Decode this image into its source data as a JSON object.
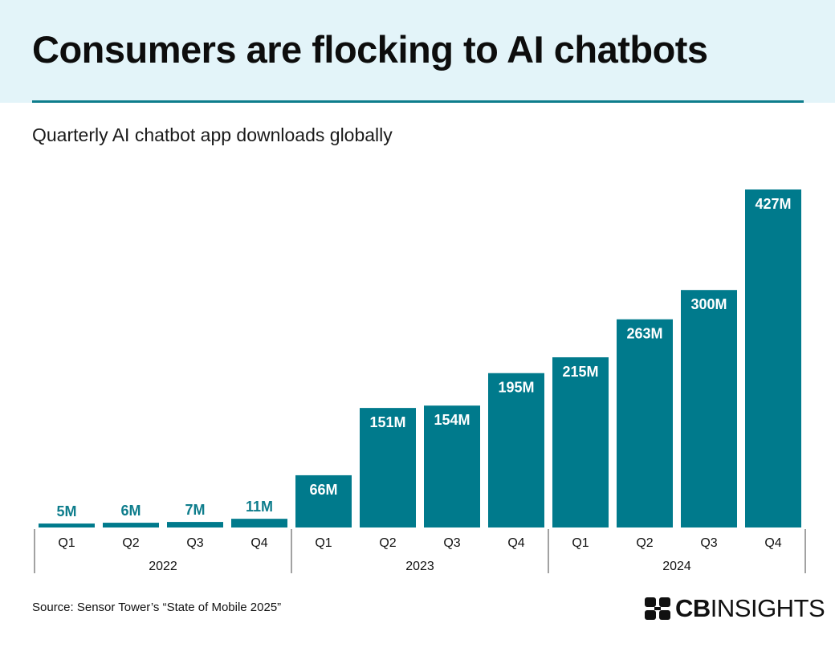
{
  "header": {
    "title": "Consumers are flocking to AI chatbots",
    "subtitle": "Quarterly AI chatbot app downloads globally"
  },
  "footer": {
    "source": "Source: Sensor Tower’s “State of Mobile 2025”",
    "logo_bold": "CB",
    "logo_light": "INSIGHTS",
    "logo_icon": "cbinsights-logo-mark"
  },
  "colors": {
    "bar": "#007a8c",
    "label_inside": "#ffffff",
    "label_outside": "#0e7d8c",
    "axis": "#444444"
  },
  "chart_data": {
    "type": "bar",
    "title": "Quarterly AI chatbot app downloads globally",
    "xlabel": "",
    "ylabel": "",
    "unit": "M",
    "categories": [
      "Q1",
      "Q2",
      "Q3",
      "Q4",
      "Q1",
      "Q2",
      "Q3",
      "Q4",
      "Q1",
      "Q2",
      "Q3",
      "Q4"
    ],
    "groups": [
      {
        "label": "2022",
        "count": 4
      },
      {
        "label": "2023",
        "count": 4
      },
      {
        "label": "2024",
        "count": 4
      }
    ],
    "values": [
      5,
      6,
      7,
      11,
      66,
      151,
      154,
      195,
      215,
      263,
      300,
      427
    ],
    "data_labels": [
      "5M",
      "6M",
      "7M",
      "11M",
      "66M",
      "151M",
      "154M",
      "195M",
      "215M",
      "263M",
      "300M",
      "427M"
    ],
    "ylim": [
      0,
      427
    ],
    "grid": false,
    "legend": "none"
  }
}
